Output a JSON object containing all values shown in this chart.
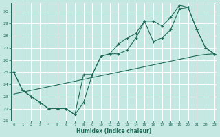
{
  "xlabel": "Humidex (Indice chaleur)",
  "bg_color": "#c5e8e2",
  "grid_color": "#dff0ec",
  "line_color": "#1e6b5a",
  "x": [
    0,
    1,
    2,
    3,
    4,
    5,
    6,
    7,
    8,
    9,
    10,
    11,
    12,
    13,
    14,
    15,
    16,
    17,
    18,
    19,
    20,
    21,
    22,
    23
  ],
  "y_lower": [
    25.0,
    23.5,
    23.0,
    22.5,
    22.0,
    22.0,
    22.0,
    21.5,
    22.5,
    24.8,
    26.3,
    26.5,
    26.5,
    26.8,
    27.8,
    29.2,
    27.5,
    27.8,
    28.5,
    30.2,
    30.3,
    28.5,
    27.0,
    26.5
  ],
  "y_upper": [
    25.0,
    23.5,
    23.0,
    22.5,
    22.0,
    22.0,
    22.0,
    21.5,
    24.8,
    24.8,
    26.3,
    26.5,
    27.3,
    27.8,
    28.2,
    29.2,
    29.2,
    28.8,
    29.5,
    30.5,
    30.3,
    28.5,
    27.0,
    26.5
  ],
  "y_trend": [
    23.2,
    23.35,
    23.5,
    23.65,
    23.8,
    23.95,
    24.1,
    24.25,
    24.4,
    24.55,
    24.7,
    24.85,
    25.0,
    25.15,
    25.3,
    25.45,
    25.6,
    25.75,
    25.9,
    26.05,
    26.2,
    26.35,
    26.45,
    26.5
  ],
  "ylim": [
    21,
    30.7
  ],
  "xlim": [
    -0.3,
    23.3
  ],
  "yticks": [
    21,
    22,
    23,
    24,
    25,
    26,
    27,
    28,
    29,
    30
  ],
  "xticks": [
    0,
    1,
    2,
    3,
    4,
    5,
    6,
    7,
    8,
    9,
    10,
    11,
    12,
    13,
    14,
    15,
    16,
    17,
    18,
    19,
    20,
    21,
    22,
    23
  ],
  "figsize": [
    3.2,
    2.0
  ],
  "dpi": 100
}
